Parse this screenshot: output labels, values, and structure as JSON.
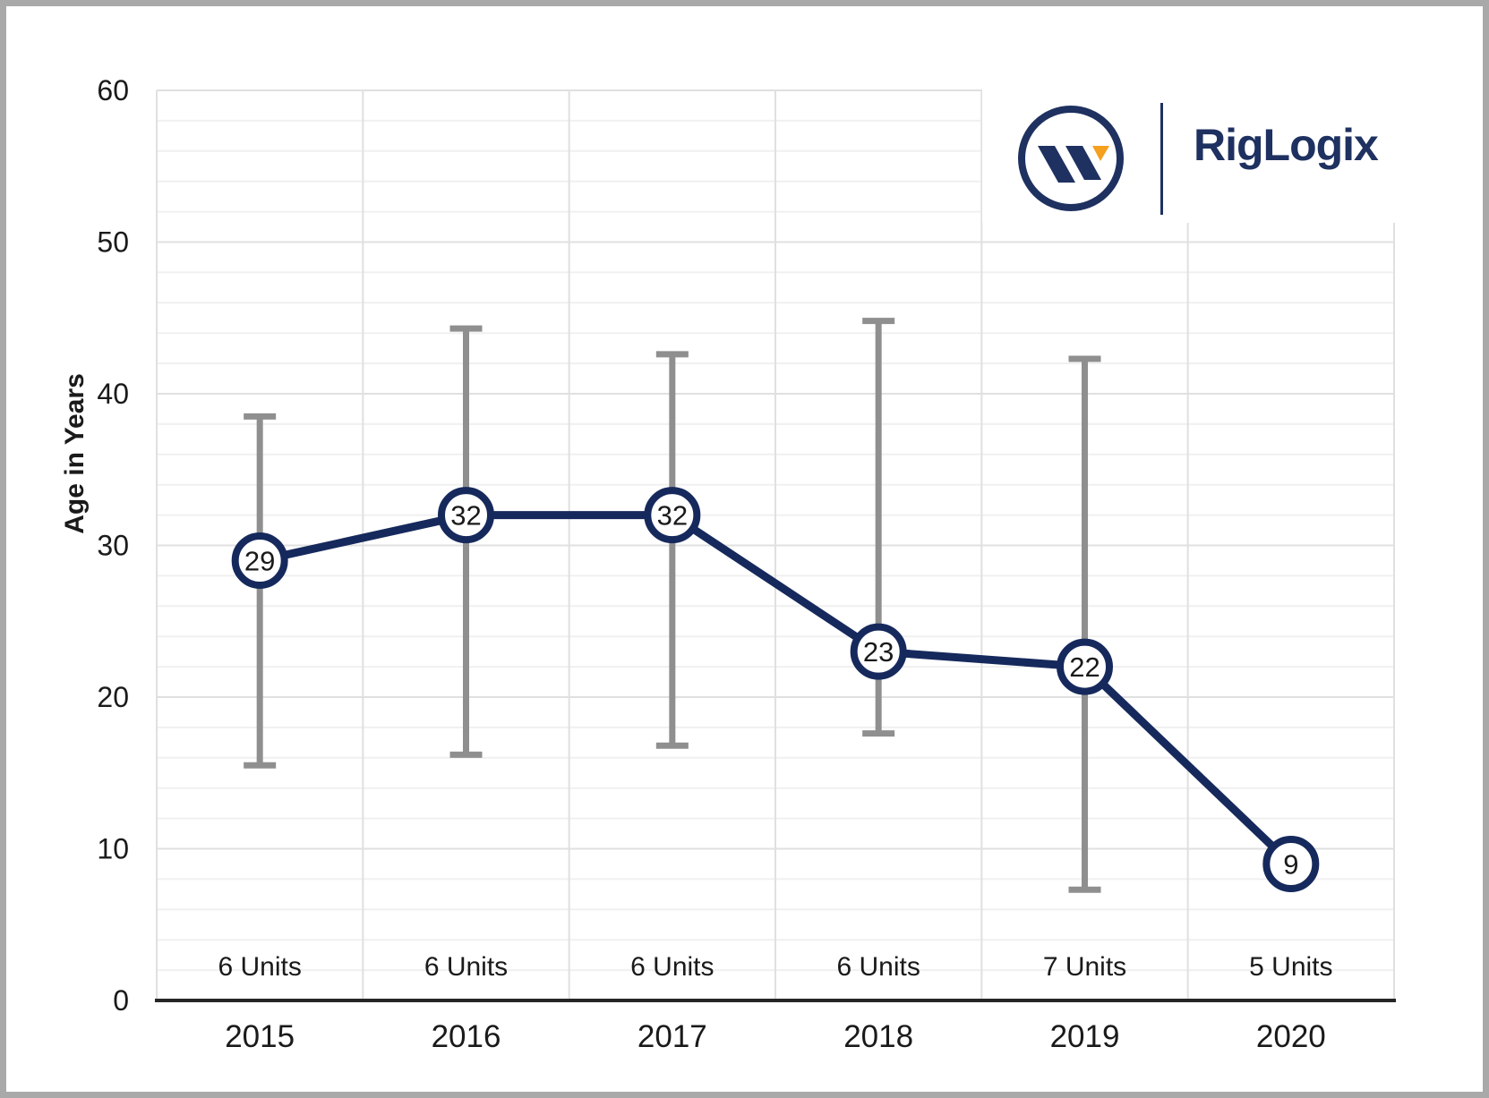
{
  "logo": {
    "brand": "RigLogix",
    "icon": "w-logo",
    "navy": "#1e3160",
    "orange": "#f5a01e"
  },
  "chart_data": {
    "type": "line",
    "title": "",
    "xlabel": "",
    "ylabel": "Age in Years",
    "ylim": [
      0,
      60
    ],
    "yticks": [
      0,
      10,
      20,
      30,
      40,
      50,
      60
    ],
    "minor_gridline_step": 2,
    "grid": "on",
    "legend": "none",
    "categories": [
      "2015",
      "2016",
      "2017",
      "2018",
      "2019",
      "2020"
    ],
    "values": [
      29,
      32,
      32,
      23,
      22,
      9
    ],
    "point_labels": [
      "29",
      "32",
      "32",
      "23",
      "22",
      "9"
    ],
    "units_labels": [
      "6 Units",
      "6 Units",
      "6 Units",
      "6 Units",
      "7 Units",
      "5 Units"
    ],
    "error_bars": [
      {
        "low": 15.5,
        "high": 38.5
      },
      {
        "low": 16.2,
        "high": 44.3
      },
      {
        "low": 16.8,
        "high": 42.6
      },
      {
        "low": 17.6,
        "high": 44.8
      },
      {
        "low": 7.3,
        "high": 42.3
      },
      null
    ],
    "colors": {
      "line": "#16295c",
      "marker_fill": "#ffffff",
      "error_bar": "#8f8f8f",
      "grid_minor": "#f0f0f0",
      "grid_major": "#e0e0e0",
      "axis": "#262626",
      "text": "#1a1a1a"
    }
  }
}
